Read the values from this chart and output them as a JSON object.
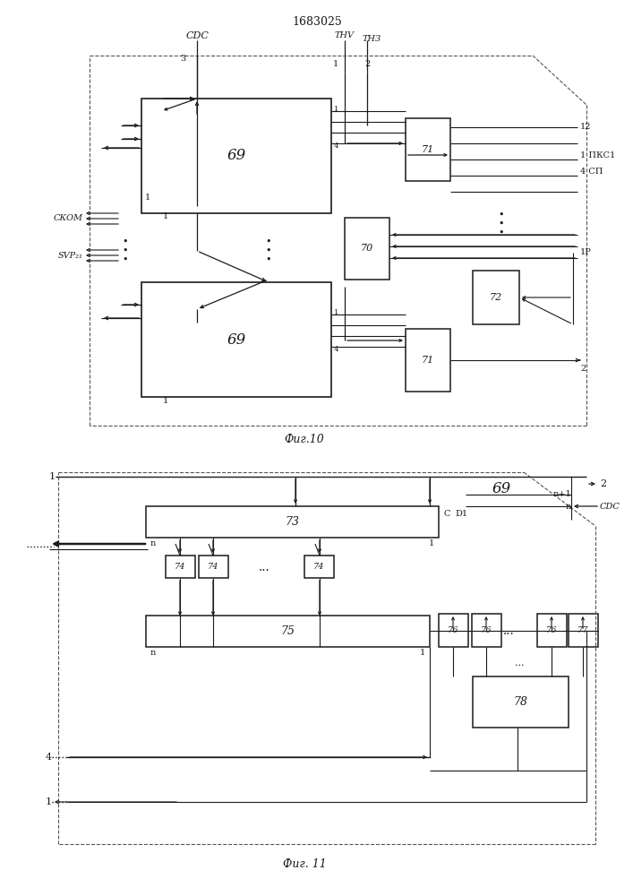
{
  "title": "1683025",
  "fig10_caption": "Фиг.10",
  "fig11_caption": "Фиг. 11",
  "bg": "#ffffff",
  "lc": "#1a1a1a",
  "dc": "#555555"
}
